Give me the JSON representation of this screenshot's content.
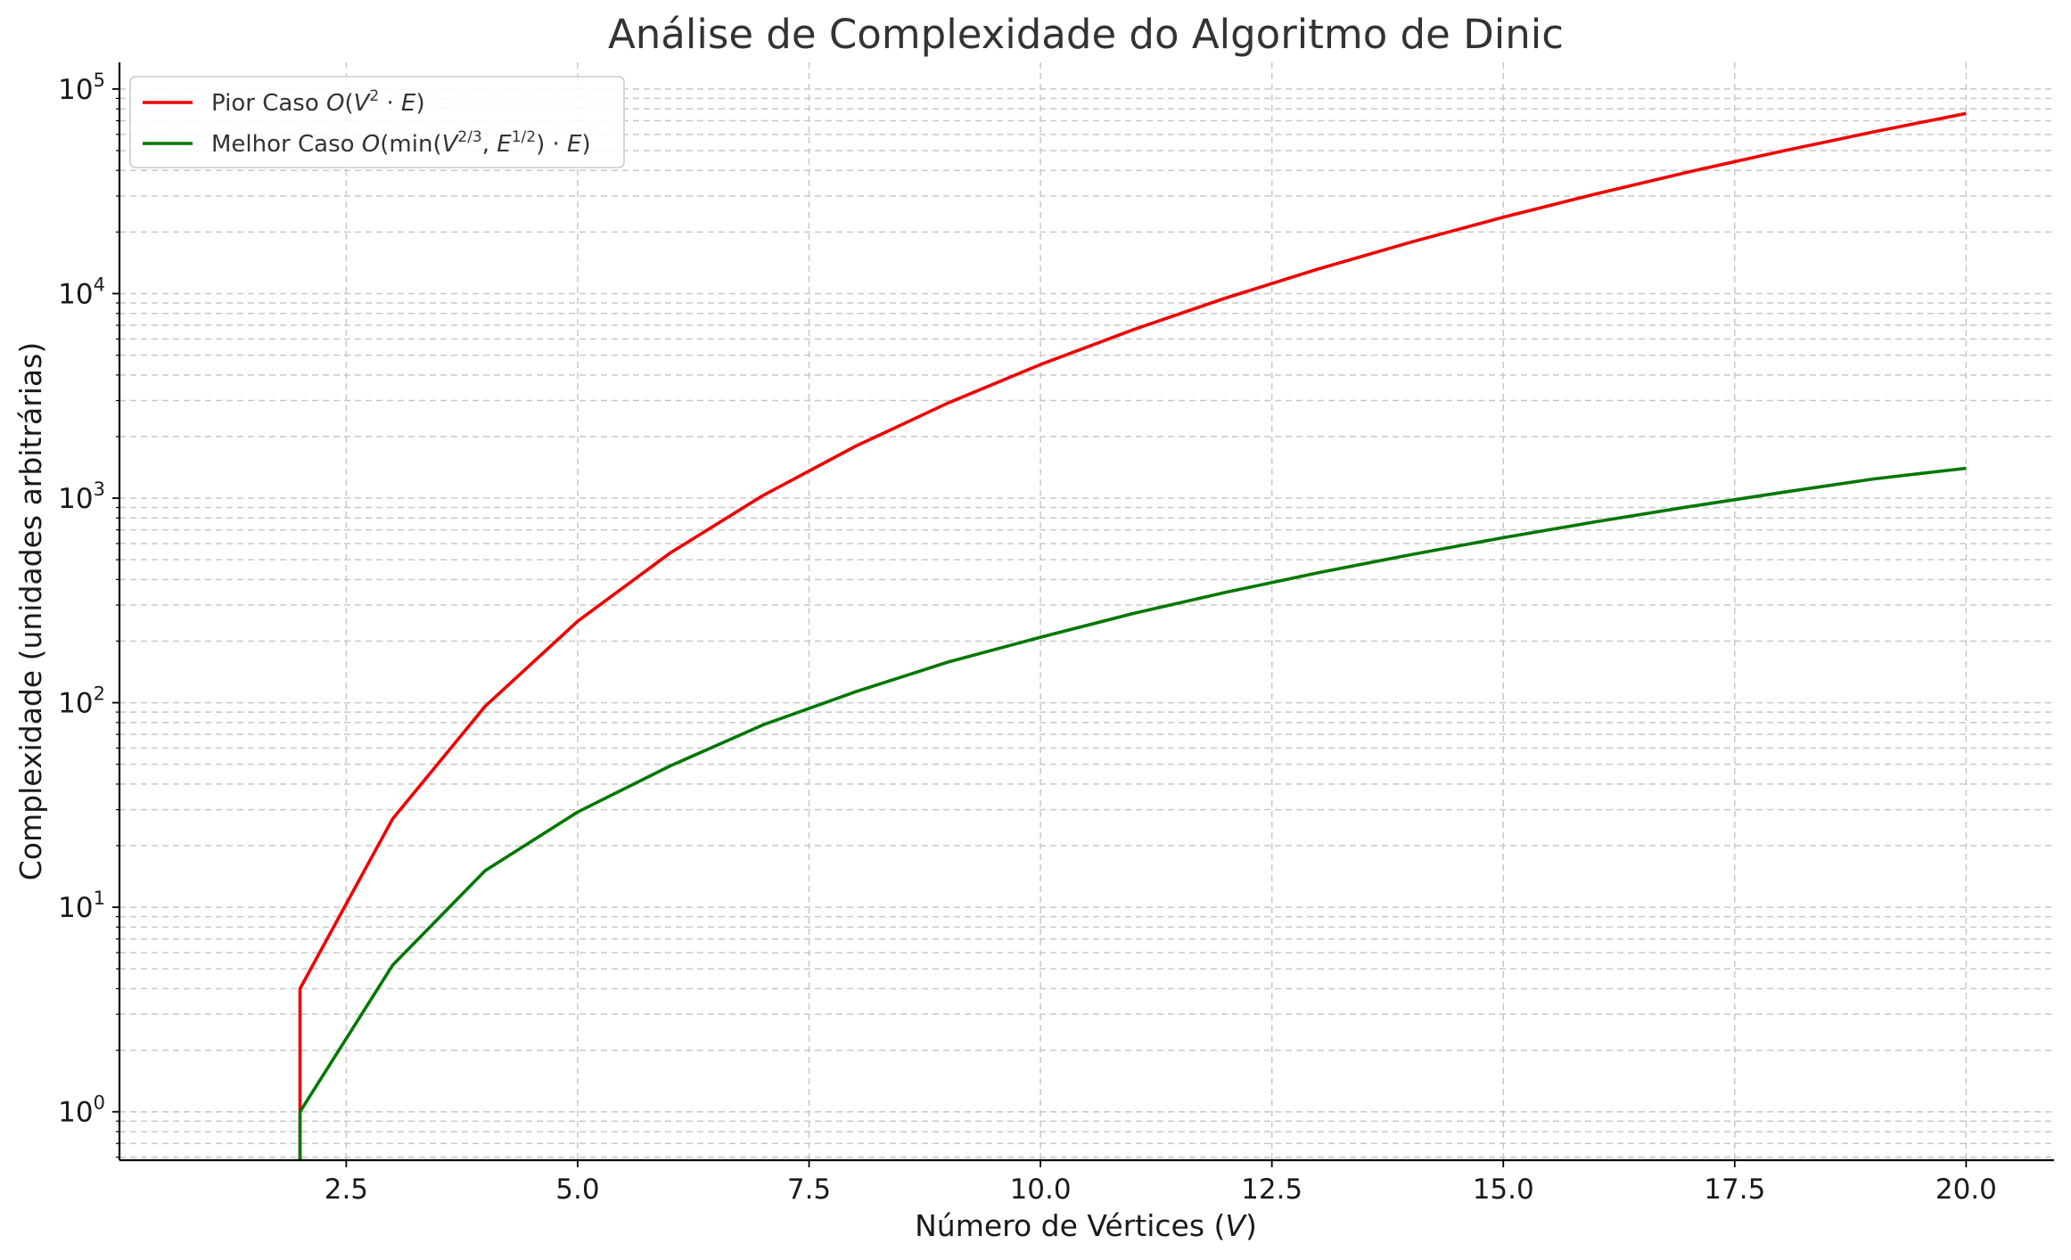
{
  "chart_data": {
    "type": "line",
    "title": "Análise de Complexidade do Algoritmo de Dinic",
    "xlabel": "Número de Vértices (V)",
    "ylabel": "Complexidade (unidades arbitrárias)",
    "xlim": [
      0.05,
      20.95
    ],
    "ylim": [
      0.58,
      135000
    ],
    "yscale": "log",
    "grid": true,
    "legend_position": "top-left",
    "x_ticks": [
      "2.5",
      "5.0",
      "7.5",
      "10.0",
      "12.5",
      "15.0",
      "17.5",
      "20.0"
    ],
    "y_ticks": [
      {
        "base": "10",
        "exp": "0"
      },
      {
        "base": "10",
        "exp": "1"
      },
      {
        "base": "10",
        "exp": "2"
      },
      {
        "base": "10",
        "exp": "3"
      },
      {
        "base": "10",
        "exp": "4"
      },
      {
        "base": "10",
        "exp": "5"
      }
    ],
    "series": [
      {
        "name": "Pior Caso O(V²·E)",
        "color": "#ee0000",
        "x": [
          2,
          2,
          3,
          4,
          5,
          6,
          7,
          8,
          9,
          10,
          11,
          12,
          13,
          14,
          15,
          16,
          17,
          18,
          19,
          20
        ],
        "values": [
          0.5,
          4,
          27,
          96,
          250,
          540,
          1029,
          1792,
          2916,
          4500,
          6655,
          9504,
          13182,
          17836,
          23625,
          30720,
          39304,
          49572,
          61731,
          76000
        ]
      },
      {
        "name": "Melhor Caso O(min(V^{2/3}, E^{1/2})·E)",
        "color": "#007700",
        "x": [
          2,
          2,
          3,
          4,
          5,
          6,
          7,
          8,
          9,
          10,
          11,
          12,
          13,
          14,
          15,
          16,
          17,
          18,
          19,
          20
        ],
        "values": [
          0.5,
          1.0,
          5.2,
          15.1,
          29.2,
          49.1,
          77.8,
          113,
          158,
          209,
          273,
          346,
          432,
          529,
          641,
          767,
          908,
          1065,
          1241,
          1400
        ]
      }
    ]
  }
}
